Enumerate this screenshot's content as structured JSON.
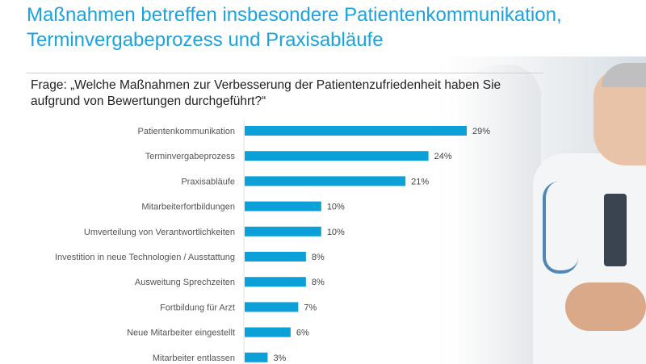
{
  "chart_data": {
    "type": "bar",
    "orientation": "horizontal",
    "title": "Maßnahmen betreffen insbesondere Patientenkommunikation, Terminvergabeprozess und Praxisabläufe",
    "subtitle": "Frage: „Welche Maßnahmen zur Verbesserung der Patientenzufriedenheit haben Sie aufgrund von Bewertungen durchgeführt?“",
    "categories": [
      "Patientenkommunikation",
      "Terminvergabeprozess",
      "Praxisabläufe",
      "Mitarbeiterfortbildungen",
      "Umverteilung von Verantwortlichkeiten",
      "Investition in neue Technologien / Ausstattung",
      "Ausweitung Sprechzeiten",
      "Fortbildung für Arzt",
      "Neue Mitarbeiter eingestellt",
      "Mitarbeiter entlassen"
    ],
    "values": [
      29,
      24,
      21,
      10,
      10,
      8,
      8,
      7,
      6,
      3
    ],
    "value_labels": [
      "29%",
      "24%",
      "21%",
      "10%",
      "10%",
      "8%",
      "8%",
      "7%",
      "6%",
      "3%"
    ],
    "unit": "%",
    "xlim": [
      0,
      30
    ],
    "grid": false,
    "bar_color": "#0ba0d8",
    "title_color": "#1aa3dc"
  }
}
